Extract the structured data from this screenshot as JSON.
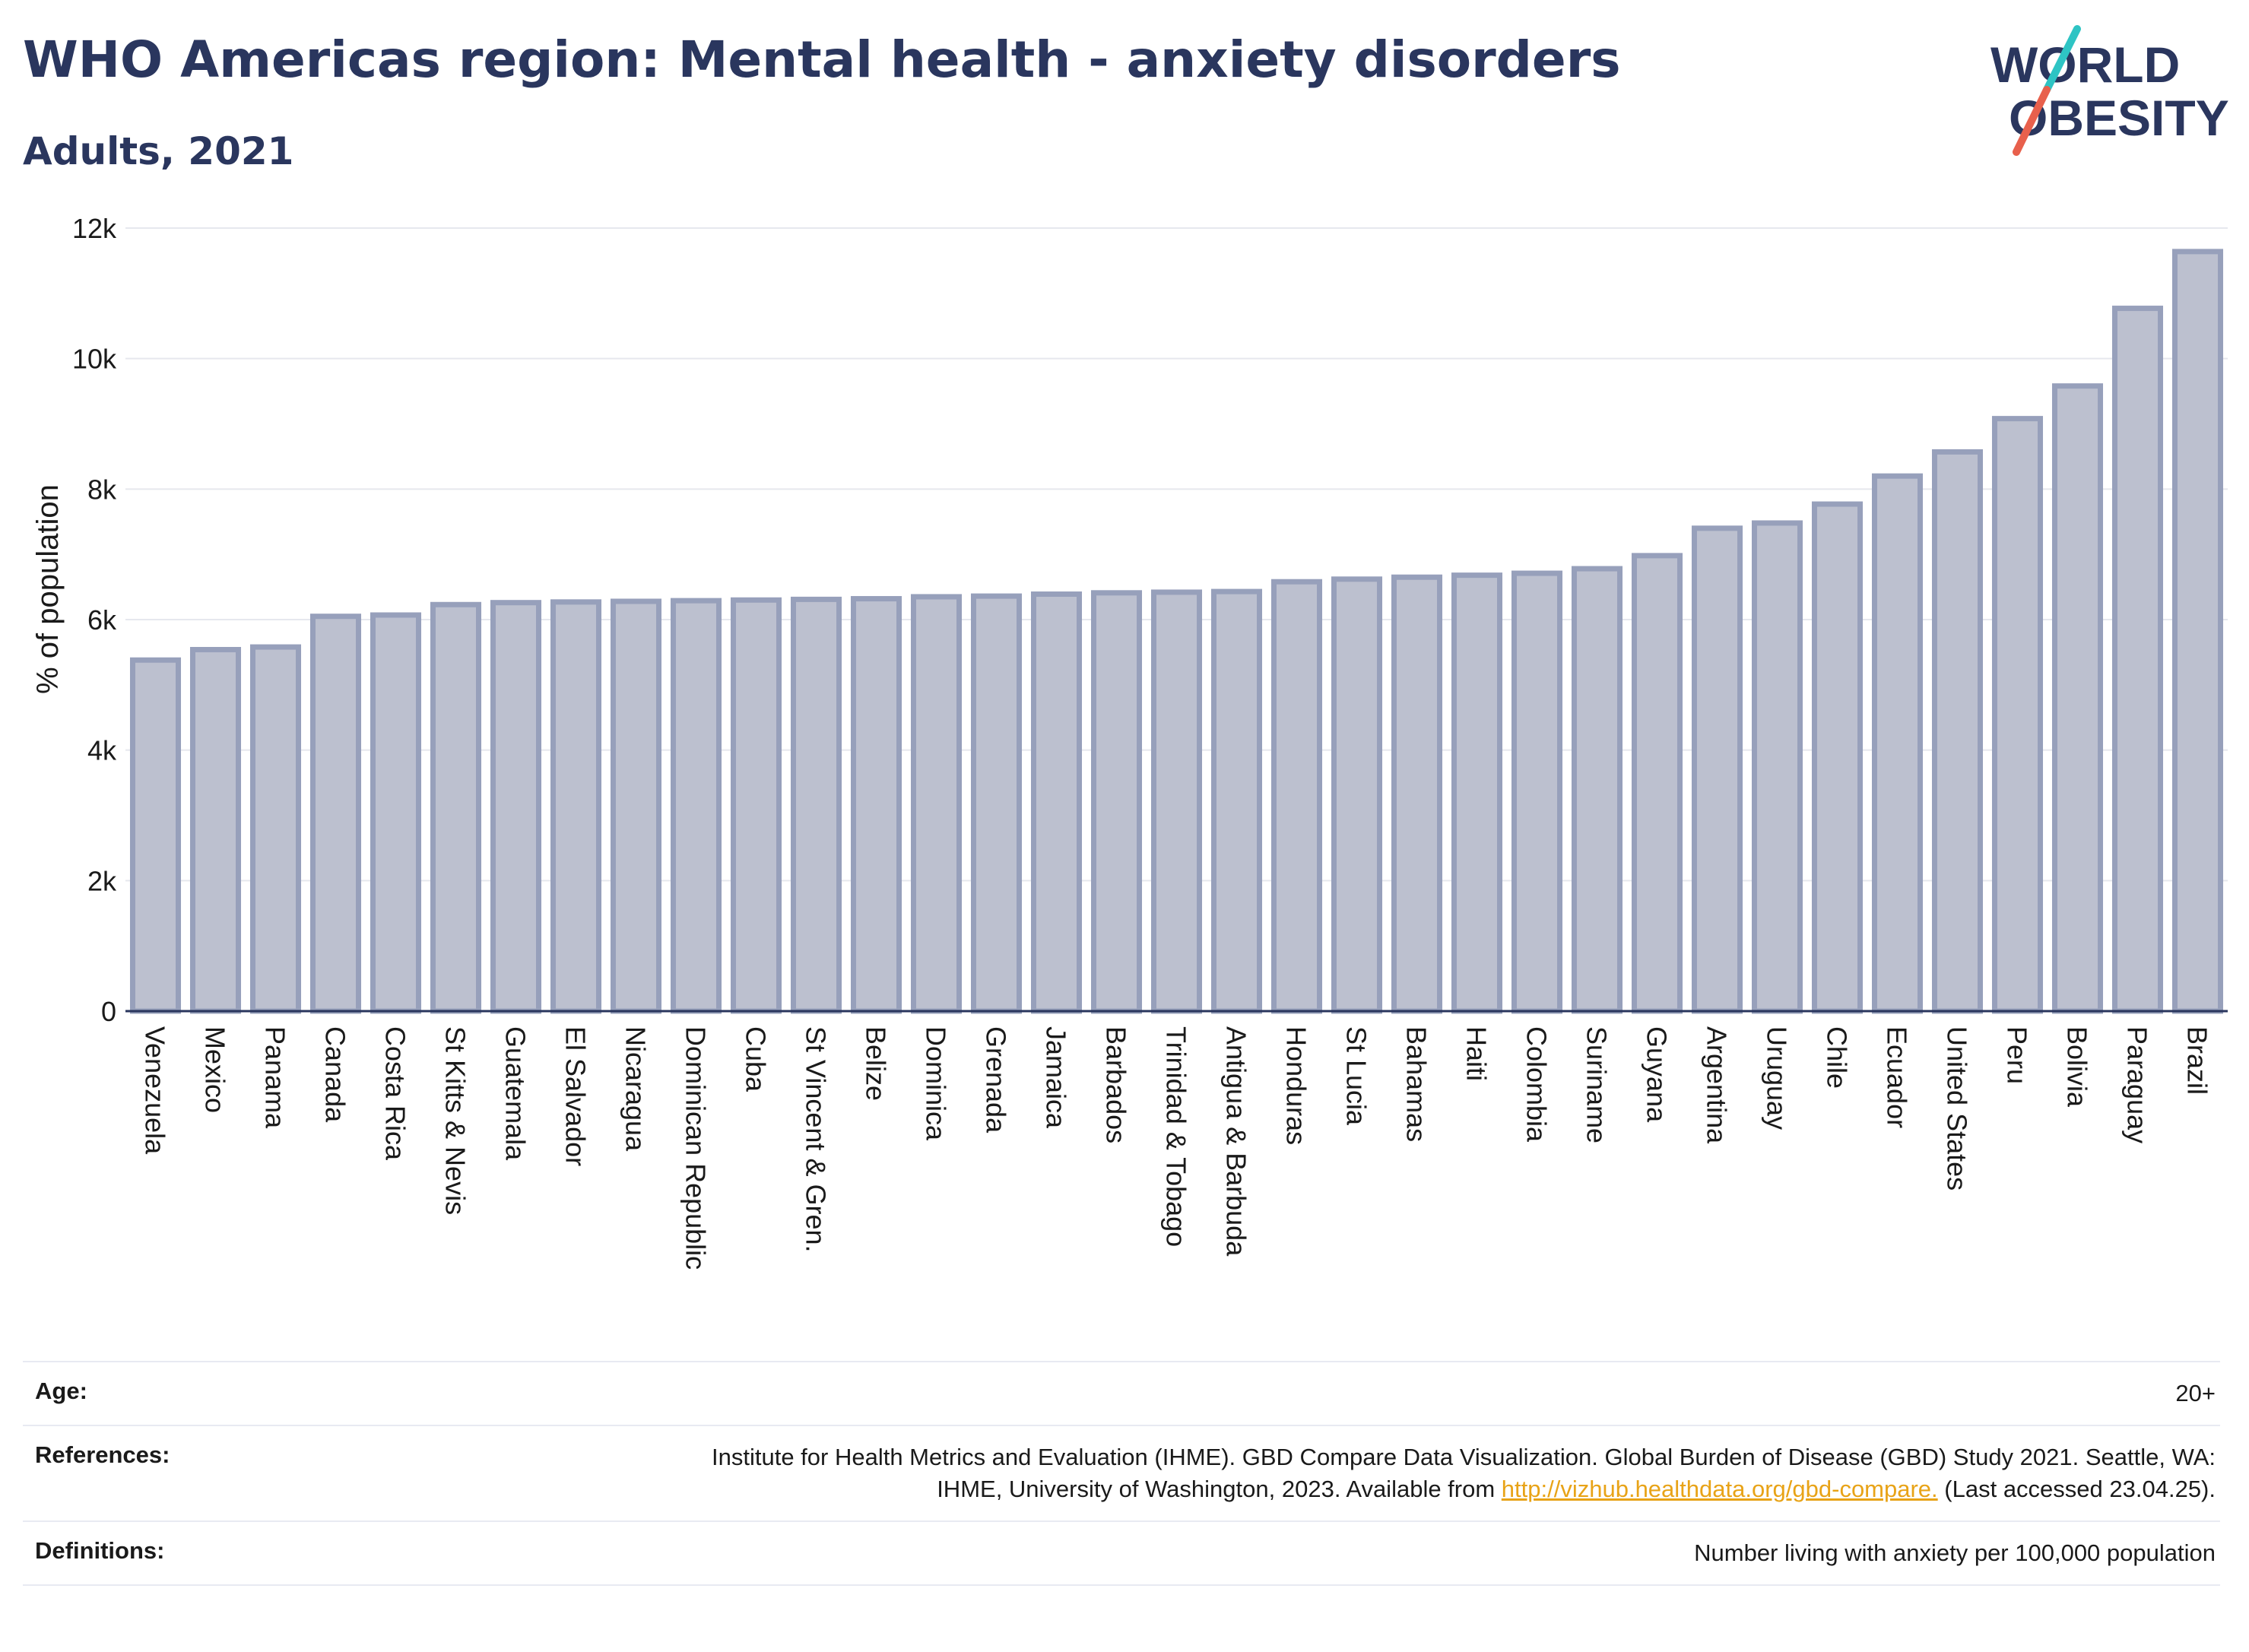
{
  "header": {
    "title": "WHO Americas region: Mental health - anxiety disorders",
    "subtitle": "Adults, 2021"
  },
  "logo": {
    "line1": "WORLD",
    "line2": "OBESITY",
    "colors": {
      "text": "#2a365e",
      "slash_teal": "#2ec4c4",
      "slash_coral": "#e8604c"
    }
  },
  "chart_data": {
    "type": "bar",
    "title": "WHO Americas region: Mental health - anxiety disorders",
    "subtitle": "Adults, 2021",
    "xlabel": "",
    "ylabel": "% of population",
    "ylim": [
      0,
      12000
    ],
    "yticks": [
      0,
      2000,
      4000,
      6000,
      8000,
      10000,
      12000
    ],
    "ytick_labels": [
      "0",
      "2k",
      "4k",
      "6k",
      "8k",
      "10k",
      "12k"
    ],
    "grid": true,
    "legend": "none",
    "categories": [
      "Venezuela",
      "Mexico",
      "Panama",
      "Canada",
      "Costa Rica",
      "St Kitts & Nevis",
      "Guatemala",
      "El Salvador",
      "Nicaragua",
      "Dominican Republic",
      "Cuba",
      "St Vincent & Gren.",
      "Belize",
      "Dominica",
      "Grenada",
      "Jamaica",
      "Barbados",
      "Trinidad & Tobago",
      "Antigua & Barbuda",
      "Honduras",
      "St Lucia",
      "Bahamas",
      "Haiti",
      "Colombia",
      "Suriname",
      "Guyana",
      "Argentina",
      "Uruguay",
      "Chile",
      "Ecuador",
      "United States",
      "Peru",
      "Bolivia",
      "Paraguay",
      "Brazil"
    ],
    "values": [
      5380,
      5540,
      5580,
      6050,
      6070,
      6230,
      6260,
      6270,
      6280,
      6290,
      6300,
      6310,
      6320,
      6350,
      6360,
      6390,
      6410,
      6420,
      6430,
      6580,
      6620,
      6650,
      6680,
      6710,
      6780,
      6980,
      7400,
      7480,
      7770,
      8200,
      8570,
      9080,
      9580,
      10770,
      11640
    ],
    "colors": {
      "bar_fill": "#bcc0cf",
      "bar_stroke": "#97a0bb",
      "grid": "#e6e8ee",
      "axis": "#2a365e"
    }
  },
  "footer": {
    "age_label": "Age:",
    "age_value": "20+",
    "references_label": "References:",
    "references_text_before": "Institute for Health Metrics and Evaluation (IHME). GBD Compare Data Visualization. Global Burden of Disease (GBD) Study 2021. Seattle, WA: IHME, University of Washington, 2023. Available from ",
    "references_link": "http://vizhub.healthdata.org/gbd-compare.",
    "references_text_after": " (Last accessed 23.04.25).",
    "definitions_label": "Definitions:",
    "definitions_value": "Number living with anxiety per 100,000 population"
  }
}
